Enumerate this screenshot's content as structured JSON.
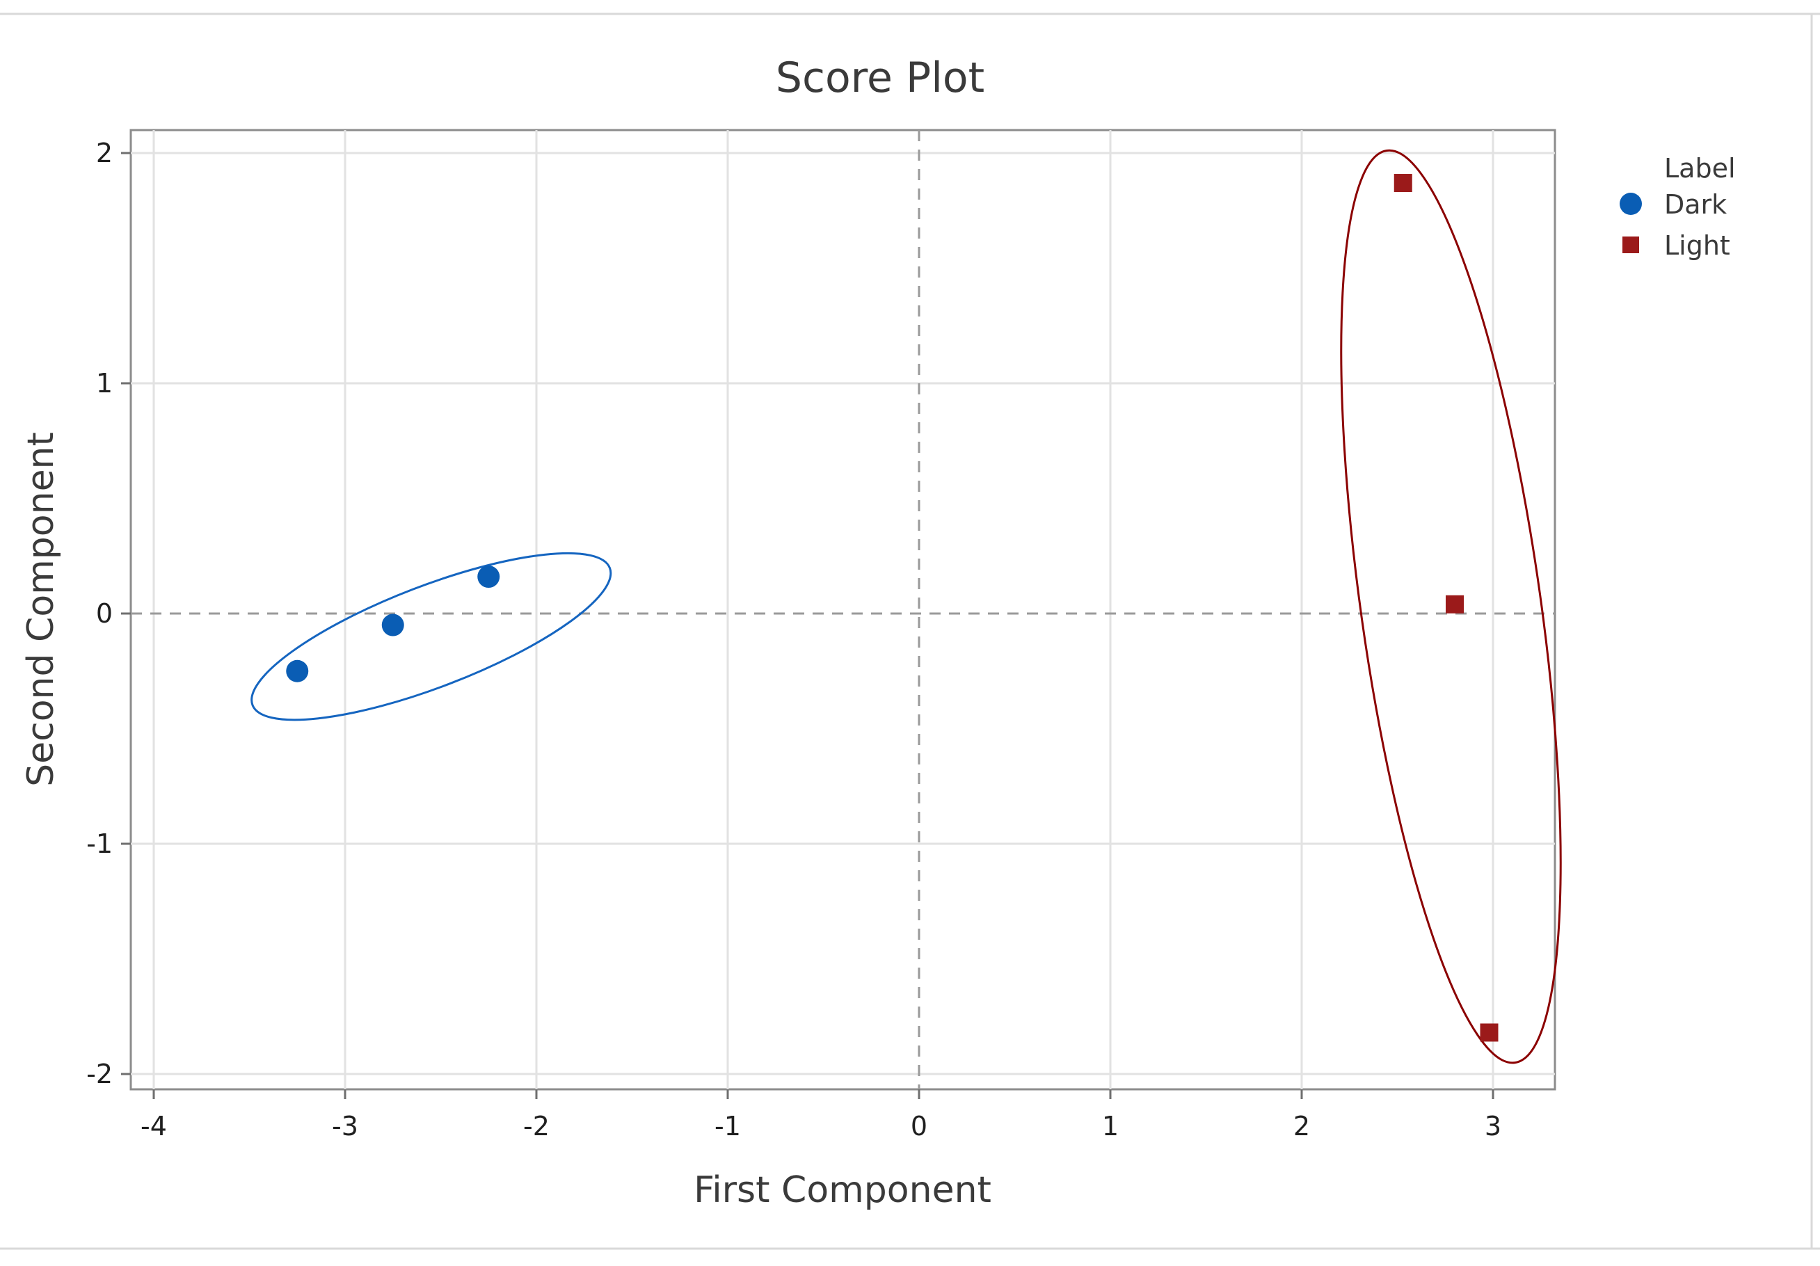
{
  "chart_data": {
    "type": "scatter",
    "title": "Score Plot",
    "xlabel": "First Component",
    "ylabel": "Second Component",
    "xlim": [
      -4.1,
      3.3
    ],
    "ylim": [
      -2.05,
      2.1
    ],
    "x_ticks": [
      -4,
      -3,
      -2,
      -1,
      0,
      1,
      2,
      3
    ],
    "y_ticks": [
      -2,
      -1,
      0,
      1,
      2
    ],
    "x_tick_labels": [
      "-4",
      "-3",
      "-2",
      "-1",
      "0",
      "1",
      "2",
      "3"
    ],
    "y_tick_labels": [
      "-2",
      "-1",
      "0",
      "1",
      "2"
    ],
    "grid": true,
    "reference_lines": {
      "x": 0,
      "y": 0
    },
    "legend": {
      "title": "Label",
      "placement": "top-right outside plot",
      "entries": [
        "Dark",
        "Light"
      ]
    },
    "series": [
      {
        "name": "Dark",
        "marker": "circle",
        "color": "#0a5db4",
        "points": [
          {
            "x": -3.25,
            "y": -0.25
          },
          {
            "x": -2.75,
            "y": -0.05
          },
          {
            "x": -2.25,
            "y": 0.16
          }
        ]
      },
      {
        "name": "Light",
        "marker": "square",
        "color": "#9b1a1a",
        "points": [
          {
            "x": 2.53,
            "y": 1.87
          },
          {
            "x": 2.8,
            "y": 0.04
          },
          {
            "x": 2.98,
            "y": -1.82
          }
        ]
      }
    ],
    "annotations": [
      {
        "kind": "ellipse",
        "group": "Dark",
        "color": "#1565c0",
        "center": [
          -2.55,
          -0.1
        ],
        "radii_data": [
          1.0,
          0.22
        ],
        "angle_deg": -21
      },
      {
        "kind": "ellipse",
        "group": "Light",
        "color": "#8b0000",
        "center": [
          2.78,
          0.03
        ],
        "radii_data": [
          0.47,
          2.0
        ],
        "angle_deg": -8
      }
    ]
  }
}
